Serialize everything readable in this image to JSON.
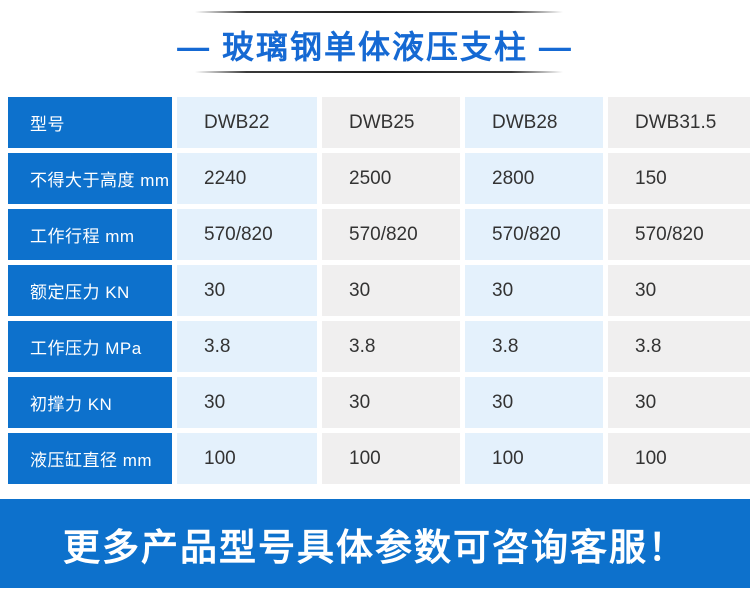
{
  "colors": {
    "primary_blue": "#0d71cc",
    "title_blue": "#1569d3",
    "cell_light_blue": "#e4f1fc",
    "cell_light_gray": "#f0efef",
    "data_text": "#333333"
  },
  "header": {
    "title": "— 玻璃钢单体液压支柱 —"
  },
  "table": {
    "corner_label": "型号",
    "columns": [
      "DWB22",
      "DWB25",
      "DWB28",
      "DWB31.5"
    ],
    "rows": [
      {
        "label": "不得大于高度 mm",
        "values": [
          "2240",
          "2500",
          "2800",
          "150"
        ]
      },
      {
        "label": "工作行程 mm",
        "values": [
          "570/820",
          "570/820",
          "570/820",
          "570/820"
        ]
      },
      {
        "label": "额定压力 KN",
        "values": [
          "30",
          "30",
          "30",
          "30"
        ]
      },
      {
        "label": "工作压力 MPa",
        "values": [
          "3.8",
          "3.8",
          "3.8",
          "3.8"
        ]
      },
      {
        "label": "初撑力 KN",
        "values": [
          "30",
          "30",
          "30",
          "30"
        ]
      },
      {
        "label": "液压缸直径 mm",
        "values": [
          "100",
          "100",
          "100",
          "100"
        ]
      }
    ]
  },
  "footer": {
    "text": "更多产品型号具体参数可咨询客服！"
  }
}
